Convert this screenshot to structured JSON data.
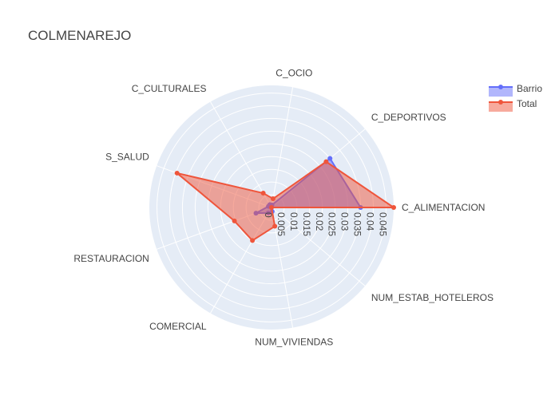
{
  "chart_data": {
    "type": "radar",
    "title": "COLMENAREJO",
    "categories": [
      "C_ALIMENTACION",
      "C_DEPORTIVOS",
      "C_OCIO",
      "C_CULTURALES",
      "S_SALUD",
      "RESTAURACION",
      "COMERCIAL",
      "NUM_VIVIENDAS",
      "NUM_ESTAB_HOTELEROS"
    ],
    "radial_ticks": [
      "0",
      "0.005",
      "0.01",
      "0.015",
      "0.02",
      "0.025",
      "0.03",
      "0.035",
      "0.04",
      "0.045"
    ],
    "rmax": 0.048,
    "grid": true,
    "legend_position": "top-right",
    "series": [
      {
        "name": "Barrio",
        "color": "#636efa",
        "values": [
          0.035,
          0.03,
          0.001,
          0.0013,
          0.0013,
          0.0065,
          0.0025,
          0.0016,
          0.0
        ]
      },
      {
        "name": "Total",
        "color": "#ef553b",
        "values": [
          0.048,
          0.028,
          0.0035,
          0.0065,
          0.0395,
          0.0155,
          0.015,
          0.0075,
          0.0
        ]
      }
    ]
  }
}
